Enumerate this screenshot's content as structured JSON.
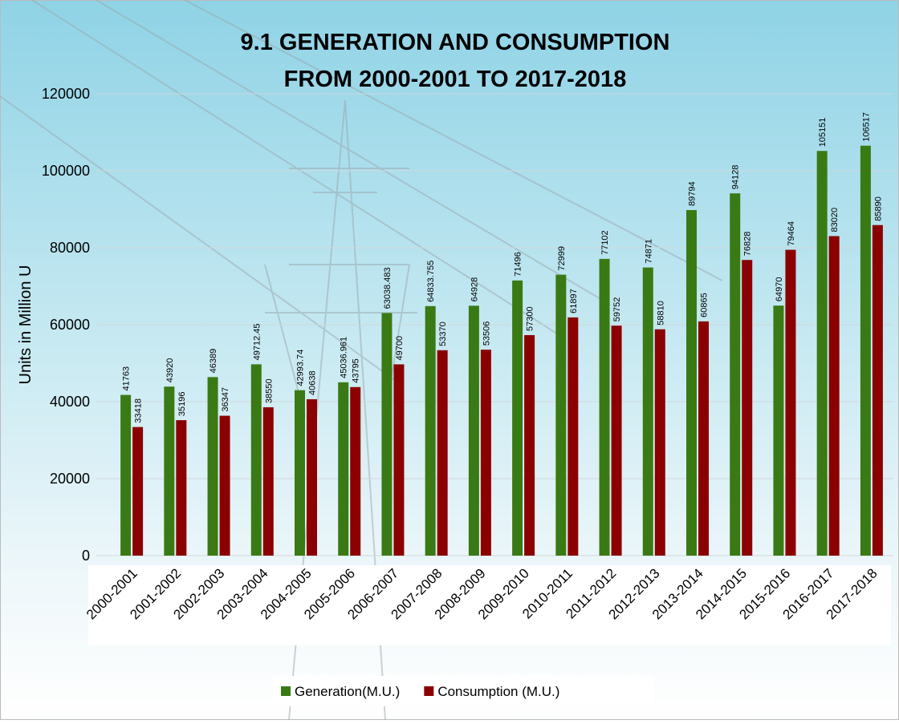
{
  "chart_data": {
    "type": "bar",
    "title": [
      "9.1 GENERATION AND CONSUMPTION",
      "FROM 2000-2001 TO 2017-2018"
    ],
    "y_label": "Units in  Million U",
    "categories": [
      "2000-2001",
      "2001-2002",
      "2002-2003",
      "2003-2004",
      "2004-2005",
      "2005-2006",
      "2006-2007",
      "2007-2008",
      "2008-2009",
      "2009-2010",
      "2010-2011",
      "2011-2012",
      "2012-2013",
      "2013-2014",
      "2014-2015",
      "2015-2016",
      "2016-2017",
      "2017-2018"
    ],
    "series": [
      {
        "name": "Generation(M.U.)",
        "color": "#3a7a14",
        "values": [
          41763,
          43920,
          46389,
          49712.45,
          42993.74,
          45036.961,
          63038.483,
          64833.755,
          64928,
          71496,
          72999,
          77102,
          74871,
          89794,
          94128,
          64970,
          105151,
          106517
        ]
      },
      {
        "name": "Consumption (M.U.)",
        "color": "#8b0000",
        "values": [
          33418,
          35196,
          36347,
          38550,
          40638,
          43795,
          49700,
          53370,
          53506,
          57300,
          61897,
          59752,
          58810,
          60865,
          76828,
          79464,
          83020,
          85890
        ]
      }
    ],
    "ylim": [
      0,
      120000
    ],
    "yticks": [
      0,
      20000,
      40000,
      60000,
      80000,
      100000,
      120000
    ],
    "grid": true,
    "legend": "bottom"
  }
}
